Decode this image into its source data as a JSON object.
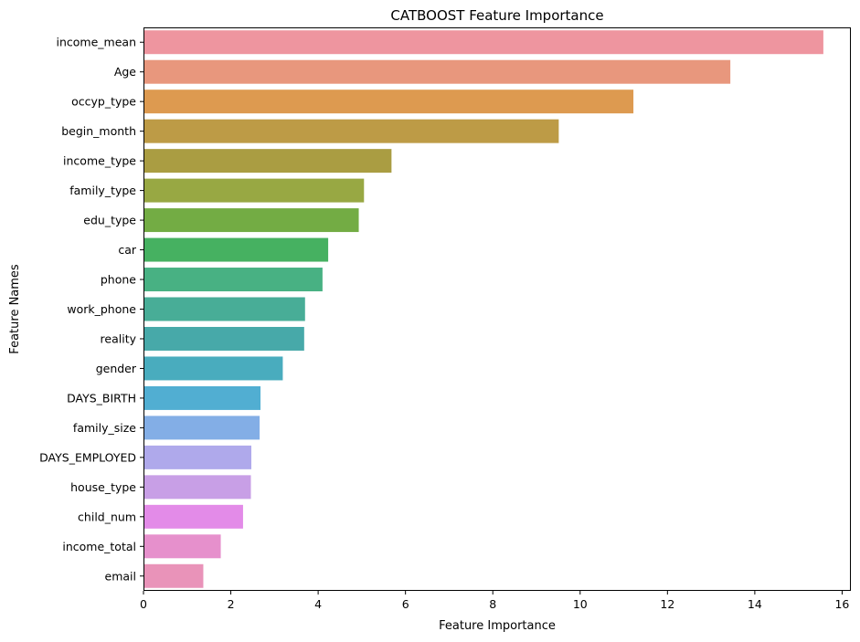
{
  "chart_data": {
    "type": "bar",
    "orientation": "horizontal",
    "title": "CATBOOST Feature Importance",
    "xlabel": "Feature Importance",
    "ylabel": "Feature Names",
    "xlim": [
      0,
      16.2
    ],
    "xticks": [
      0,
      2,
      4,
      6,
      8,
      10,
      12,
      14,
      16
    ],
    "grid": false,
    "categories": [
      "income_mean",
      "Age",
      "occyp_type",
      "begin_month",
      "income_type",
      "family_type",
      "edu_type",
      "car",
      "phone",
      "work_phone",
      "reality",
      "gender",
      "DAYS_BIRTH",
      "family_size",
      "DAYS_EMPLOYED",
      "house_type",
      "child_num",
      "income_total",
      "email"
    ],
    "values": [
      15.57,
      13.44,
      11.22,
      9.51,
      5.68,
      5.05,
      4.93,
      4.23,
      4.1,
      3.7,
      3.68,
      3.19,
      2.68,
      2.66,
      2.47,
      2.46,
      2.28,
      1.77,
      1.37
    ],
    "colors": [
      "#ee959f",
      "#e8977d",
      "#dd9a50",
      "#bd9b46",
      "#aa9d42",
      "#98a843",
      "#73ac44",
      "#46b161",
      "#48b183",
      "#48ad97",
      "#47a9a9",
      "#49acbe",
      "#51aed2",
      "#83aee6",
      "#afa9eb",
      "#c89fe6",
      "#e38be8",
      "#e690cc",
      "#e993b9"
    ]
  }
}
